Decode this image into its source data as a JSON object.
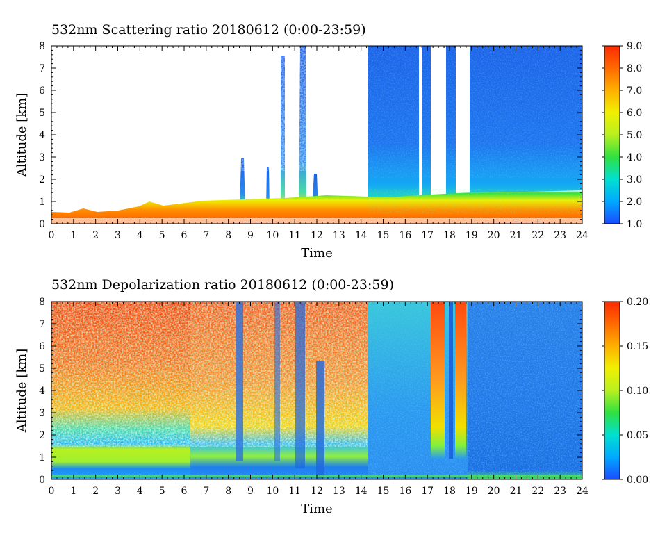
{
  "chart_data": [
    {
      "type": "heatmap",
      "title": "532nm Scattering ratio  20180612 (0:00-23:59)",
      "xlabel": "Time",
      "ylabel": "Altitude [km]",
      "xlim": [
        0,
        24
      ],
      "ylim": [
        0,
        8
      ],
      "x_ticks": [
        "0",
        "1",
        "2",
        "3",
        "4",
        "5",
        "6",
        "7",
        "8",
        "9",
        "10",
        "11",
        "12",
        "13",
        "14",
        "15",
        "16",
        "17",
        "18",
        "19",
        "20",
        "21",
        "22",
        "23",
        "24"
      ],
      "y_ticks": [
        "0",
        "1",
        "2",
        "3",
        "4",
        "5",
        "6",
        "7",
        "8"
      ],
      "colorbar": {
        "range": [
          1.0,
          9.0
        ],
        "ticks": [
          "1.0",
          "2.0",
          "3.0",
          "4.0",
          "5.0",
          "6.0",
          "7.0",
          "8.0",
          "9.0"
        ],
        "colors": [
          "#1a4cff",
          "#00a8ff",
          "#00e0d0",
          "#30e040",
          "#b8f020",
          "#f0f000",
          "#ffb000",
          "#ff6a00",
          "#ff2a00"
        ]
      },
      "features": [
        {
          "kind": "near-surface aerosol layer",
          "x_range": [
            0,
            24
          ],
          "top_km": [
            0.5,
            1.3
          ],
          "value_range": [
            5.0,
            9.0
          ]
        },
        {
          "kind": "elevated high-value layer",
          "x_range": [
            8,
            19
          ],
          "alt_km": [
            0.8,
            1.3
          ],
          "value_range": [
            7.0,
            9.0
          ]
        },
        {
          "kind": "no-data region above boundary layer",
          "x_range": [
            0,
            14.3
          ],
          "alt_km": [
            1.0,
            8.0
          ]
        },
        {
          "kind": "molecular background",
          "x_range": [
            14.3,
            24
          ],
          "alt_km": [
            1.5,
            8.0
          ],
          "value_range": [
            1.0,
            2.5
          ]
        },
        {
          "kind": "vertical no-data gaps",
          "x_centers": [
            16.7,
            18.0
          ],
          "alt_km": [
            1.1,
            8.0
          ]
        }
      ]
    },
    {
      "type": "heatmap",
      "title": "532nm Depolarization ratio  20180612 (0:00-23:59)",
      "xlabel": "Time",
      "ylabel": "Altitude [km]",
      "xlim": [
        0,
        24
      ],
      "ylim": [
        0,
        8
      ],
      "x_ticks": [
        "0",
        "1",
        "2",
        "3",
        "4",
        "5",
        "6",
        "7",
        "8",
        "9",
        "10",
        "11",
        "12",
        "13",
        "14",
        "15",
        "16",
        "17",
        "18",
        "19",
        "20",
        "21",
        "22",
        "23",
        "24"
      ],
      "y_ticks": [
        "0",
        "1",
        "2",
        "3",
        "4",
        "5",
        "6",
        "7",
        "8"
      ],
      "colorbar": {
        "range": [
          0.0,
          0.2
        ],
        "ticks": [
          "0.00",
          "0.05",
          "0.10",
          "0.15",
          "0.20"
        ],
        "colors": [
          "#1a4cff",
          "#00a8ff",
          "#00e0d0",
          "#30e040",
          "#b8f020",
          "#f0f000",
          "#ffb000",
          "#ff6a00",
          "#ff2a00"
        ]
      },
      "features": [
        {
          "kind": "noisy high-depolarization region",
          "x_range": [
            0,
            14.3
          ],
          "alt_km": [
            1.5,
            8.0
          ],
          "value_range": [
            0.1,
            0.2
          ]
        },
        {
          "kind": "boundary layer",
          "x_range": [
            0,
            8
          ],
          "alt_km": [
            0.3,
            1.4
          ],
          "value_range": [
            0.08,
            0.12
          ]
        },
        {
          "kind": "low-depolarization background",
          "x_range": [
            14.3,
            24
          ],
          "alt_km": [
            0,
            8.0
          ],
          "value_range": [
            0.0,
            0.05
          ]
        },
        {
          "kind": "noisy columns",
          "x_ranges": [
            [
              17.2,
              17.8
            ],
            [
              18.3,
              18.8
            ]
          ],
          "alt_km": [
            1.0,
            8.0
          ]
        }
      ]
    }
  ]
}
